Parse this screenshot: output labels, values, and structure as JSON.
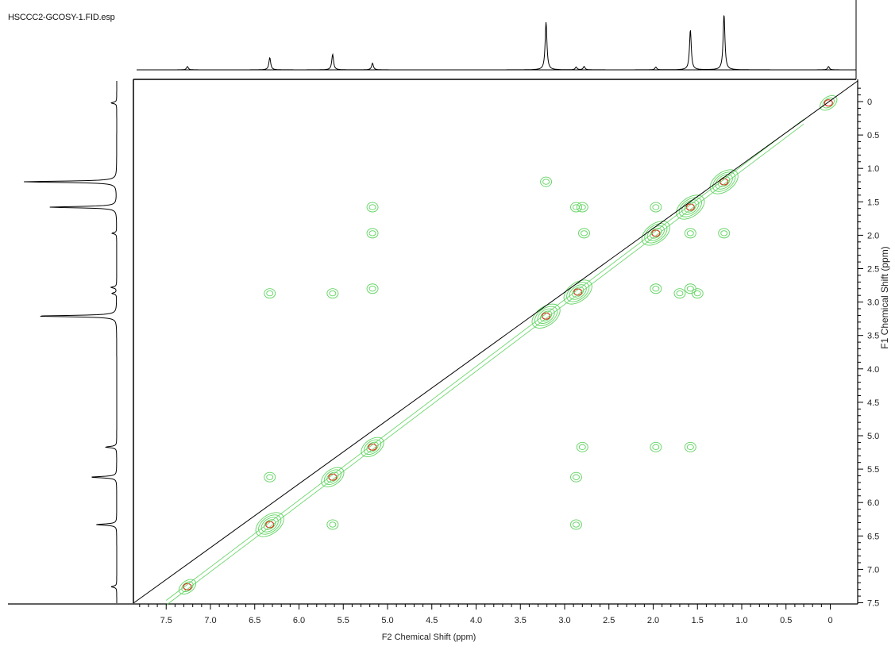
{
  "file_title": "HSCCC2-GCOSY-1.FID.esp",
  "colors": {
    "contour_outer": "#5fd35f",
    "contour_center": "#e0301e",
    "spectrum_trace": "#000000",
    "diagonal": "#000000",
    "axes": "#000000"
  },
  "chart_data": {
    "type": "scatter",
    "subtype": "2D gCOSY NMR contour map with projections",
    "xlabel": "F2 Chemical Shift (ppm)",
    "ylabel": "F1 Chemical Shift (ppm)",
    "x_axis": {
      "reversed": true,
      "ticks": [
        7.5,
        7.0,
        6.5,
        6.0,
        5.5,
        5.0,
        4.5,
        4.0,
        3.5,
        3.0,
        2.5,
        2.0,
        1.5,
        1.0,
        0.5,
        0
      ],
      "tick_labels": [
        "7.5",
        "7.0",
        "6.5",
        "6.0",
        "5.5",
        "5.0",
        "4.5",
        "4.0",
        "3.5",
        "3.0",
        "2.5",
        "2.0",
        "1.5",
        "1.0",
        "0.5",
        "0"
      ]
    },
    "y_axis": {
      "reversed": false,
      "position": "right",
      "ticks": [
        0,
        0.5,
        1.0,
        1.5,
        2.0,
        2.5,
        3.0,
        3.5,
        4.0,
        4.5,
        5.0,
        5.5,
        6.0,
        6.5,
        7.0,
        7.5
      ],
      "tick_labels": [
        "0",
        "0.5",
        "1.0",
        "1.5",
        "2.0",
        "2.5",
        "3.0",
        "3.5",
        "4.0",
        "4.5",
        "5.0",
        "5.5",
        "6.0",
        "6.5",
        "7.0",
        "7.5"
      ]
    },
    "grid": false,
    "diagonal_line": true,
    "projection_peaks": [
      {
        "ppm": 7.26,
        "intensity": 0.06
      },
      {
        "ppm": 6.33,
        "intensity": 0.22
      },
      {
        "ppm": 5.62,
        "intensity": 0.28
      },
      {
        "ppm": 5.17,
        "intensity": 0.12
      },
      {
        "ppm": 3.21,
        "intensity": 0.86
      },
      {
        "ppm": 2.87,
        "intensity": 0.05
      },
      {
        "ppm": 2.78,
        "intensity": 0.06
      },
      {
        "ppm": 1.97,
        "intensity": 0.05
      },
      {
        "ppm": 1.58,
        "intensity": 0.72
      },
      {
        "ppm": 1.2,
        "intensity": 1.0
      },
      {
        "ppm": 0.02,
        "intensity": 0.06
      }
    ],
    "diagonal_peaks": [
      {
        "ppm": 7.26,
        "strength": 1
      },
      {
        "ppm": 6.33,
        "strength": 3
      },
      {
        "ppm": 5.62,
        "strength": 2
      },
      {
        "ppm": 5.17,
        "strength": 2
      },
      {
        "ppm": 3.21,
        "strength": 3
      },
      {
        "ppm": 2.85,
        "strength": 3
      },
      {
        "ppm": 1.97,
        "strength": 3
      },
      {
        "ppm": 1.58,
        "strength": 3
      },
      {
        "ppm": 1.2,
        "strength": 3
      },
      {
        "ppm": 0.02,
        "strength": 1
      }
    ],
    "cross_peaks": [
      {
        "f2": 5.17,
        "f1": 1.58
      },
      {
        "f2": 5.17,
        "f1": 1.97
      },
      {
        "f2": 5.17,
        "f1": 2.8
      },
      {
        "f2": 6.33,
        "f1": 2.87
      },
      {
        "f2": 5.62,
        "f1": 2.87
      },
      {
        "f2": 2.8,
        "f1": 1.58
      },
      {
        "f2": 2.87,
        "f1": 1.58
      },
      {
        "f2": 2.78,
        "f1": 1.97
      },
      {
        "f2": 1.97,
        "f1": 2.8
      },
      {
        "f2": 1.58,
        "f1": 2.8
      },
      {
        "f2": 1.7,
        "f1": 2.87
      },
      {
        "f2": 1.5,
        "f1": 2.87
      },
      {
        "f2": 3.21,
        "f1": 1.2
      },
      {
        "f2": 1.2,
        "f1": 1.97
      },
      {
        "f2": 2.8,
        "f1": 5.17
      },
      {
        "f2": 1.97,
        "f1": 5.17
      },
      {
        "f2": 1.58,
        "f1": 5.17
      },
      {
        "f2": 2.87,
        "f1": 5.62
      },
      {
        "f2": 2.87,
        "f1": 6.33
      },
      {
        "f2": 6.33,
        "f1": 5.62
      },
      {
        "f2": 5.62,
        "f1": 6.33
      },
      {
        "f2": 1.97,
        "f1": 1.58
      },
      {
        "f2": 1.58,
        "f1": 1.97
      }
    ]
  }
}
